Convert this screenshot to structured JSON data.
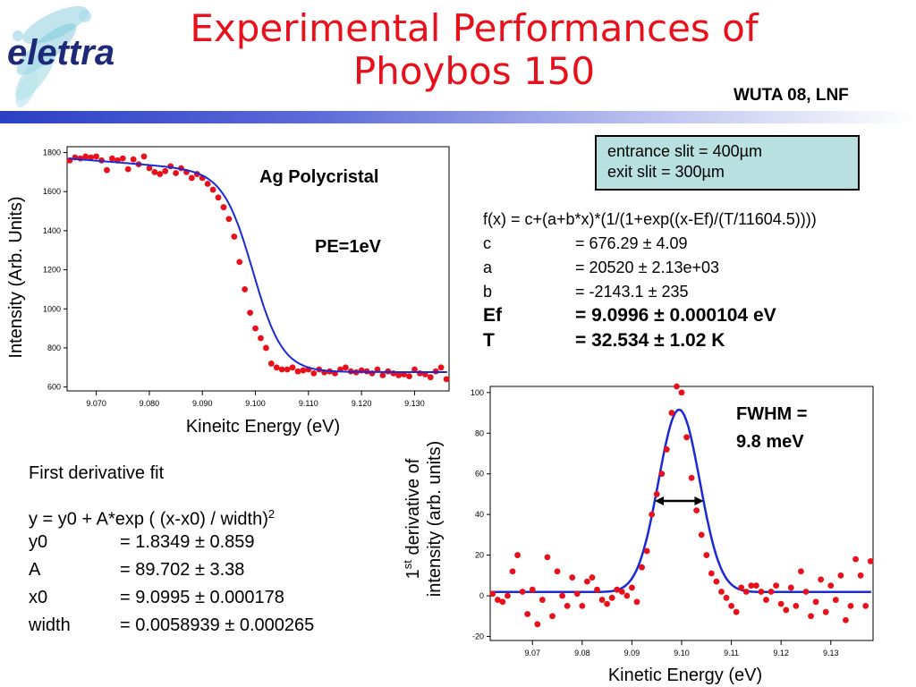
{
  "header": {
    "title_line1": "Experimental Performances of",
    "title_line2": "Phoybos 150",
    "venue": "WUTA 08, LNF",
    "logo_text": "elettra"
  },
  "info_box": {
    "line1": "entrance slit = 400µm",
    "line2": "exit slit = 300µm"
  },
  "fermi_fit": {
    "formula": "f(x) = c+(a+b*x)*(1/(1+exp((x-Ef)/(T/11604.5))))",
    "params": [
      {
        "name": "c",
        "value": "= 676.29 ± 4.09",
        "bold": false
      },
      {
        "name": "a",
        "value": "= 20520 ± 2.13e+03",
        "bold": false
      },
      {
        "name": "b",
        "value": "= -2143.1 ± 235",
        "bold": false
      },
      {
        "name": "Ef",
        "value": "= 9.0996 ± 0.000104  eV",
        "bold": true
      },
      {
        "name": "T",
        "value": "= 32.534 ± 1.02  K",
        "bold": true
      }
    ]
  },
  "derivative_fit": {
    "heading": "First derivative fit",
    "formula_main": "y = y0 + A*exp ( (x-x0) / width)",
    "formula_sup": "2",
    "params": [
      {
        "name": "y0",
        "value": "= 1.8349 ± 0.859"
      },
      {
        "name": "A",
        "value": "= 89.702 ± 3.38"
      },
      {
        "name": "x0",
        "value": "= 9.0995 ± 0.000178"
      },
      {
        "name": "width",
        "value": "= 0.0058939 ± 0.000265"
      }
    ]
  },
  "chart_data": [
    {
      "type": "scatter",
      "title": "Ag Polycristal",
      "annotation": "PE=1eV",
      "xlabel": "Kineitc Energy (eV)",
      "ylabel": "Intensity (Arb. Units)",
      "xlim": [
        9.0645,
        9.1365
      ],
      "ylim": [
        580,
        1830
      ],
      "xticks": [
        "9.070",
        "9.080",
        "9.090",
        "9.100",
        "9.110",
        "9.120",
        "9.130"
      ],
      "xtick_values": [
        9.07,
        9.08,
        9.09,
        9.1,
        9.11,
        9.12,
        9.13
      ],
      "yticks": [
        "600",
        "800",
        "1000",
        "1200",
        "1400",
        "1600",
        "1800"
      ],
      "ytick_values": [
        600,
        800,
        1000,
        1200,
        1400,
        1600,
        1800
      ],
      "colors": {
        "points": "#e8101a",
        "fit": "#1a2ad8"
      },
      "series": [
        {
          "role": "data",
          "x": [
            9.065,
            9.066,
            9.067,
            9.068,
            9.069,
            9.07,
            9.071,
            9.072,
            9.073,
            9.074,
            9.075,
            9.076,
            9.077,
            9.078,
            9.079,
            9.08,
            9.081,
            9.082,
            9.083,
            9.084,
            9.085,
            9.086,
            9.087,
            9.088,
            9.089,
            9.09,
            9.091,
            9.092,
            9.093,
            9.094,
            9.095,
            9.096,
            9.097,
            9.098,
            9.099,
            9.1,
            9.101,
            9.102,
            9.103,
            9.104,
            9.105,
            9.106,
            9.107,
            9.108,
            9.109,
            9.11,
            9.111,
            9.112,
            9.113,
            9.114,
            9.115,
            9.116,
            9.117,
            9.118,
            9.119,
            9.12,
            9.121,
            9.122,
            9.123,
            9.124,
            9.125,
            9.126,
            9.127,
            9.128,
            9.129,
            9.13,
            9.131,
            9.132,
            9.133,
            9.134,
            9.135,
            9.136
          ],
          "y": [
            1760,
            1775,
            1770,
            1780,
            1775,
            1780,
            1760,
            1710,
            1770,
            1760,
            1770,
            1715,
            1765,
            1740,
            1780,
            1720,
            1700,
            1690,
            1705,
            1730,
            1695,
            1720,
            1700,
            1670,
            1690,
            1670,
            1640,
            1610,
            1570,
            1520,
            1460,
            1370,
            1240,
            1100,
            980,
            900,
            850,
            800,
            720,
            700,
            690,
            690,
            700,
            680,
            685,
            690,
            670,
            690,
            675,
            680,
            670,
            690,
            700,
            680,
            675,
            685,
            680,
            670,
            690,
            660,
            680,
            670,
            660,
            665,
            655,
            690,
            670,
            665,
            650,
            680,
            700,
            640
          ]
        },
        {
          "role": "fit",
          "function": "c+(a+b*x)/(1+exp((x-Ef)/(T/11604.5)))",
          "c": 676.29,
          "a": 20520,
          "b": -2143.1,
          "Ef": 9.0996,
          "T": 32.534
        }
      ]
    },
    {
      "type": "scatter",
      "annotation_line1": "FWHM =",
      "annotation_line2": "9.8 meV",
      "xlabel": "Kinetic Energy (eV)",
      "ylabel_line1_main": "1",
      "ylabel_line1_sup": "st",
      "ylabel_line1_rest": " derivative of",
      "ylabel_line2": "intensity (arb. units)",
      "xlim": [
        9.0615,
        9.1385
      ],
      "ylim": [
        -22,
        103
      ],
      "xticks": [
        "9.07",
        "9.08",
        "9.09",
        "9.10",
        "9.11",
        "9.12",
        "9.13"
      ],
      "xtick_values": [
        9.07,
        9.08,
        9.09,
        9.1,
        9.11,
        9.12,
        9.13
      ],
      "yticks": [
        "-20",
        "0",
        "20",
        "40",
        "60",
        "80",
        "100"
      ],
      "ytick_values": [
        -20,
        0,
        20,
        40,
        60,
        80,
        100
      ],
      "fwhm_arrow": [
        9.0946,
        9.1044
      ],
      "colors": {
        "points": "#e8101a",
        "fit": "#1a2ad8",
        "arrow": "#000000"
      },
      "series": [
        {
          "role": "data",
          "x": [
            9.062,
            9.063,
            9.064,
            9.065,
            9.066,
            9.067,
            9.068,
            9.069,
            9.07,
            9.071,
            9.072,
            9.073,
            9.074,
            9.075,
            9.076,
            9.077,
            9.078,
            9.079,
            9.08,
            9.081,
            9.082,
            9.083,
            9.084,
            9.085,
            9.086,
            9.087,
            9.088,
            9.089,
            9.09,
            9.091,
            9.092,
            9.093,
            9.094,
            9.095,
            9.096,
            9.097,
            9.098,
            9.099,
            9.1,
            9.101,
            9.102,
            9.103,
            9.104,
            9.105,
            9.106,
            9.107,
            9.108,
            9.109,
            9.11,
            9.111,
            9.112,
            9.113,
            9.114,
            9.115,
            9.116,
            9.117,
            9.118,
            9.119,
            9.12,
            9.121,
            9.122,
            9.123,
            9.124,
            9.125,
            9.126,
            9.127,
            9.128,
            9.129,
            9.13,
            9.131,
            9.132,
            9.133,
            9.134,
            9.135,
            9.136,
            9.137,
            9.138
          ],
          "y": [
            1,
            -2,
            -3,
            0,
            12,
            20,
            2,
            -9,
            3,
            -14,
            -2,
            19,
            -10,
            12,
            0,
            -5,
            9,
            1,
            -5,
            7,
            9,
            3,
            -2,
            -4,
            -1,
            3,
            2,
            0,
            4,
            -3,
            14,
            22,
            40,
            50,
            60,
            72,
            90,
            103,
            100,
            78,
            58,
            42,
            30,
            20,
            11,
            7,
            2,
            -1,
            -5,
            -8,
            4,
            2,
            5,
            5,
            2,
            -2,
            2,
            5,
            -4,
            -7,
            4,
            -5,
            12,
            2,
            -10,
            -3,
            8,
            -8,
            5,
            -2,
            10,
            -12,
            -5,
            18,
            10,
            -5,
            17
          ]
        },
        {
          "role": "fit",
          "function": "y0+A*exp(-((x-x0)/width)^2)",
          "y0": 1.8349,
          "A": 89.702,
          "x0": 9.0995,
          "width": 0.0058939
        }
      ]
    }
  ]
}
